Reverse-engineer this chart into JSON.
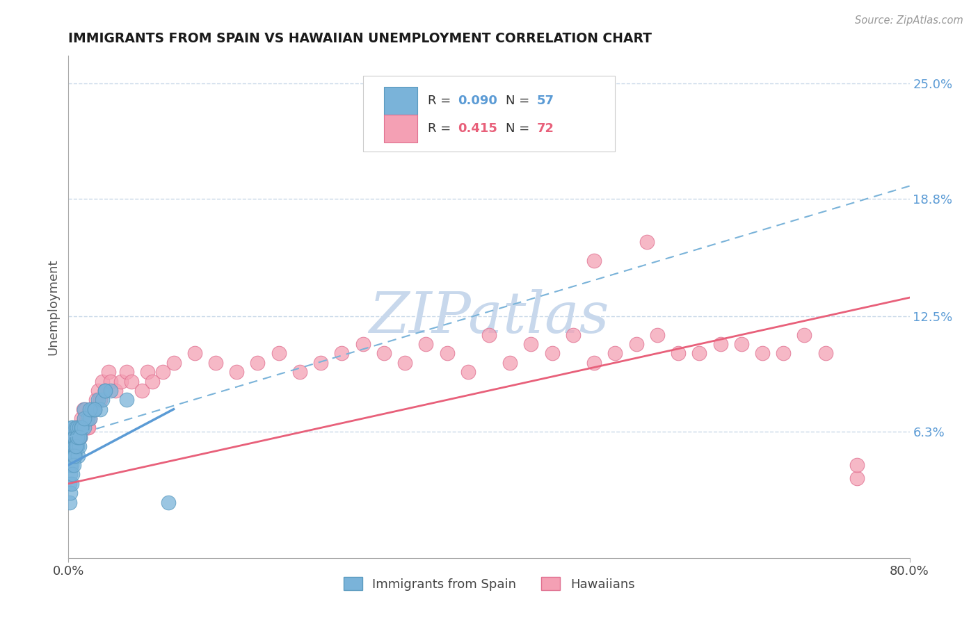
{
  "title": "IMMIGRANTS FROM SPAIN VS HAWAIIAN UNEMPLOYMENT CORRELATION CHART",
  "source": "Source: ZipAtlas.com",
  "ylabel": "Unemployment",
  "xmin": 0.0,
  "xmax": 80.0,
  "ymin": -0.5,
  "ymax": 26.5,
  "ytick_values": [
    6.3,
    12.5,
    18.8,
    25.0
  ],
  "ytick_labels": [
    "6.3%",
    "12.5%",
    "18.8%",
    "25.0%"
  ],
  "background_color": "#ffffff",
  "grid_color": "#c8d8e8",
  "title_color": "#1a1a1a",
  "axis_label_color": "#5b9bd5",
  "r_blue": 0.09,
  "n_blue": 57,
  "r_pink": 0.415,
  "n_pink": 72,
  "blue_scatter_color": "#7ab3d9",
  "blue_scatter_edge": "#5a9abf",
  "pink_scatter_color": "#f4a0b4",
  "pink_scatter_edge": "#e07090",
  "blue_line_color": "#5b9bd5",
  "pink_line_color": "#e8607a",
  "watermark_text": "ZIPatlas",
  "watermark_color": "#c8d8ec",
  "blue_scatter_x": [
    0.1,
    0.15,
    0.2,
    0.2,
    0.25,
    0.3,
    0.3,
    0.35,
    0.4,
    0.4,
    0.45,
    0.5,
    0.5,
    0.55,
    0.6,
    0.6,
    0.65,
    0.7,
    0.7,
    0.75,
    0.8,
    0.8,
    0.85,
    0.9,
    0.9,
    1.0,
    1.0,
    1.1,
    1.2,
    1.3,
    1.5,
    1.5,
    1.8,
    2.0,
    2.2,
    2.5,
    2.8,
    3.0,
    3.2,
    3.5,
    4.0,
    0.1,
    0.2,
    0.3,
    0.4,
    0.5,
    0.6,
    0.7,
    0.8,
    1.0,
    1.2,
    1.5,
    2.0,
    2.5,
    3.5,
    5.5,
    9.5
  ],
  "blue_scatter_y": [
    3.5,
    4.0,
    4.5,
    5.5,
    5.0,
    4.5,
    6.5,
    5.5,
    5.0,
    6.5,
    5.5,
    5.0,
    6.0,
    5.5,
    5.5,
    6.0,
    5.0,
    5.5,
    6.5,
    6.0,
    5.5,
    6.5,
    5.5,
    5.0,
    6.0,
    5.5,
    6.5,
    6.0,
    6.5,
    6.5,
    6.5,
    7.5,
    7.0,
    7.0,
    7.5,
    7.5,
    8.0,
    7.5,
    8.0,
    8.5,
    8.5,
    2.5,
    3.0,
    3.5,
    4.0,
    4.5,
    5.0,
    5.5,
    6.0,
    6.0,
    6.5,
    7.0,
    7.5,
    7.5,
    8.5,
    8.0,
    2.5
  ],
  "pink_scatter_x": [
    0.2,
    0.3,
    0.4,
    0.5,
    0.6,
    0.7,
    0.8,
    0.9,
    1.0,
    1.1,
    1.2,
    1.3,
    1.4,
    1.5,
    1.6,
    1.7,
    1.8,
    1.9,
    2.0,
    2.2,
    2.4,
    2.6,
    2.8,
    3.0,
    3.2,
    3.5,
    3.8,
    4.0,
    4.5,
    5.0,
    5.5,
    6.0,
    7.0,
    7.5,
    8.0,
    9.0,
    10.0,
    12.0,
    14.0,
    16.0,
    18.0,
    20.0,
    22.0,
    24.0,
    26.0,
    28.0,
    30.0,
    32.0,
    34.0,
    36.0,
    38.0,
    40.0,
    42.0,
    44.0,
    46.0,
    48.0,
    50.0,
    52.0,
    54.0,
    56.0,
    58.0,
    60.0,
    62.0,
    64.0,
    66.0,
    68.0,
    70.0,
    72.0,
    50.0,
    55.0,
    75.0,
    75.0
  ],
  "pink_scatter_y": [
    5.5,
    6.0,
    5.5,
    6.0,
    5.5,
    6.5,
    6.0,
    6.5,
    6.5,
    6.0,
    7.0,
    6.5,
    7.5,
    7.0,
    7.5,
    7.0,
    6.5,
    6.5,
    7.0,
    7.5,
    7.5,
    8.0,
    8.5,
    8.0,
    9.0,
    8.5,
    9.5,
    9.0,
    8.5,
    9.0,
    9.5,
    9.0,
    8.5,
    9.5,
    9.0,
    9.5,
    10.0,
    10.5,
    10.0,
    9.5,
    10.0,
    10.5,
    9.5,
    10.0,
    10.5,
    11.0,
    10.5,
    10.0,
    11.0,
    10.5,
    9.5,
    11.5,
    10.0,
    11.0,
    10.5,
    11.5,
    10.0,
    10.5,
    11.0,
    11.5,
    10.5,
    10.5,
    11.0,
    11.0,
    10.5,
    10.5,
    11.5,
    10.5,
    15.5,
    16.5,
    3.8,
    4.5
  ],
  "blue_line_x": [
    0.0,
    10.0
  ],
  "blue_line_y": [
    4.5,
    7.5
  ],
  "blue_dash_line_x": [
    0.0,
    80.0
  ],
  "blue_dash_line_y": [
    6.0,
    19.5
  ],
  "pink_line_x": [
    0.0,
    80.0
  ],
  "pink_line_y": [
    3.5,
    13.5
  ]
}
